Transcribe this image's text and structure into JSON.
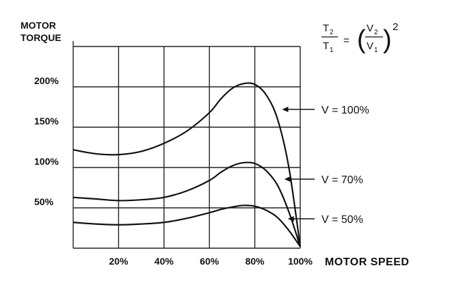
{
  "chart_data": {
    "type": "line",
    "ylabel_line1": "MOTOR",
    "ylabel_line2": "TORQUE",
    "xlabel": "MOTOR SPEED",
    "formula": "T2/T1 = (V2/V1)^2",
    "x": [
      0,
      10,
      20,
      30,
      40,
      50,
      60,
      65,
      70,
      75,
      80,
      85,
      90,
      95,
      100
    ],
    "x_tick_labels": [
      "20%",
      "40%",
      "60%",
      "80%",
      "100%"
    ],
    "x_ticks": [
      20,
      40,
      60,
      80,
      100
    ],
    "y_tick_labels": [
      "50%",
      "100%",
      "150%",
      "200%"
    ],
    "y_ticks": [
      50,
      100,
      150,
      200
    ],
    "xlim": [
      0,
      100
    ],
    "ylim": [
      0,
      250
    ],
    "grid": true,
    "series": [
      {
        "name": "V = 100%",
        "values": [
          122,
          117,
          116,
          120,
          130,
          145,
          168,
          185,
          198,
          204,
          203,
          190,
          160,
          100,
          2
        ]
      },
      {
        "name": "V = 70%",
        "values": [
          63,
          61,
          59,
          60,
          63,
          71,
          84,
          94,
          102,
          106,
          105,
          96,
          78,
          45,
          2
        ]
      },
      {
        "name": "V = 50%",
        "values": [
          32,
          30,
          29,
          30,
          32,
          37,
          44,
          48,
          51,
          53,
          52,
          47,
          38,
          22,
          2
        ]
      }
    ]
  }
}
